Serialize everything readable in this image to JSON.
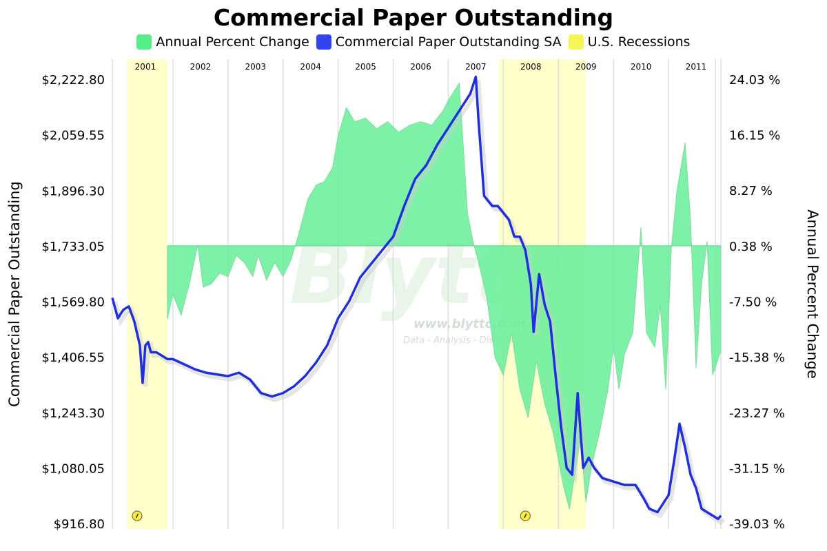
{
  "chart_data": {
    "type": "area",
    "title": "Commercial Paper Outstanding",
    "xlabel": "",
    "ylabel": "Commercial Paper Outstanding",
    "y2label": "Annual Percent Change",
    "xlim": [
      2000.9,
      2011.95
    ],
    "ylim": [
      916.8,
      2222.8
    ],
    "y2lim": [
      -39.03,
      24.03
    ],
    "y_ticks": [
      "$2,222.80",
      "$2,059.55",
      "$1,896.30",
      "$1,733.05",
      "$1,569.80",
      "$1,406.55",
      "$1,243.30",
      "$1,080.05",
      "$916.80"
    ],
    "y2_ticks": [
      "24.03 %",
      "16.15 %",
      "8.27 %",
      "0.38 %",
      "-7.50 %",
      "-15.38 %",
      "-23.27 %",
      "-31.15 %",
      "-39.03 %"
    ],
    "years": [
      "2001",
      "2002",
      "2003",
      "2004",
      "2005",
      "2006",
      "2007",
      "2008",
      "2009",
      "2010",
      "2011"
    ],
    "grid": "vertical-year-lines",
    "legend_position": "top",
    "series": [
      {
        "name": "Annual Percent Change",
        "axis": "right",
        "color": "#66ee99",
        "x": [
          2001.9,
          2002.0,
          2002.15,
          2002.3,
          2002.45,
          2002.55,
          2002.7,
          2002.85,
          2003.0,
          2003.15,
          2003.3,
          2003.45,
          2003.55,
          2003.7,
          2003.85,
          2004.0,
          2004.15,
          2004.3,
          2004.45,
          2004.6,
          2004.75,
          2004.9,
          2005.0,
          2005.15,
          2005.3,
          2005.5,
          2005.7,
          2005.9,
          2006.1,
          2006.3,
          2006.5,
          2006.7,
          2006.9,
          2007.0,
          2007.2,
          2007.35,
          2007.45,
          2007.55,
          2007.7,
          2007.85,
          2008.0,
          2008.15,
          2008.3,
          2008.45,
          2008.6,
          2008.75,
          2008.9,
          2009.0,
          2009.1,
          2009.2,
          2009.3,
          2009.4,
          2009.5,
          2009.6,
          2009.75,
          2009.9,
          2010.0,
          2010.1,
          2010.2,
          2010.35,
          2010.5,
          2010.6,
          2010.75,
          2010.85,
          2010.95,
          2011.05,
          2011.15,
          2011.3,
          2011.4,
          2011.5,
          2011.6,
          2011.7,
          2011.8,
          2011.95
        ],
        "values": [
          -10.0,
          -6.5,
          -9.5,
          -5.0,
          0.5,
          -5.5,
          -5.0,
          -3.5,
          -4.0,
          -1.0,
          -2.0,
          -4.0,
          -1.0,
          -4.5,
          -2.0,
          -4.0,
          -1.5,
          2.5,
          7.0,
          9.0,
          9.5,
          11.5,
          16.0,
          20.0,
          18.0,
          18.5,
          17.0,
          18.0,
          16.5,
          17.5,
          18.0,
          17.5,
          19.5,
          21.0,
          23.5,
          5.0,
          1.0,
          -2.0,
          -7.0,
          -15.5,
          -18.0,
          -12.0,
          -20.0,
          -24.0,
          -16.0,
          -22.0,
          -26.0,
          -30.0,
          -34.0,
          -37.0,
          -32.0,
          -27.0,
          -36.0,
          -31.0,
          -26.0,
          -20.0,
          -14.0,
          -20.0,
          -15.0,
          -12.0,
          3.0,
          -12.0,
          -14.0,
          -8.0,
          -20.0,
          0.0,
          8.0,
          15.0,
          4.0,
          -17.0,
          -5.0,
          1.0,
          -18.0,
          -14.5
        ]
      },
      {
        "name": "Commercial Paper Outstanding SA",
        "axis": "left",
        "color": "#1f2fe0",
        "x": [
          2000.9,
          2001.0,
          2001.1,
          2001.2,
          2001.3,
          2001.35,
          2001.4,
          2001.45,
          2001.5,
          2001.55,
          2001.6,
          2001.7,
          2001.8,
          2001.9,
          2002.0,
          2002.2,
          2002.4,
          2002.6,
          2002.8,
          2003.0,
          2003.2,
          2003.4,
          2003.6,
          2003.8,
          2003.9,
          2004.0,
          2004.2,
          2004.4,
          2004.6,
          2004.8,
          2005.0,
          2005.2,
          2005.4,
          2005.6,
          2005.8,
          2006.0,
          2006.2,
          2006.4,
          2006.6,
          2006.8,
          2007.0,
          2007.2,
          2007.4,
          2007.5,
          2007.55,
          2007.65,
          2007.8,
          2007.9,
          2008.0,
          2008.1,
          2008.2,
          2008.3,
          2008.4,
          2008.5,
          2008.55,
          2008.65,
          2008.75,
          2008.85,
          2008.95,
          2009.05,
          2009.15,
          2009.25,
          2009.35,
          2009.45,
          2009.55,
          2009.65,
          2009.8,
          2010.0,
          2010.2,
          2010.4,
          2010.55,
          2010.65,
          2010.8,
          2011.0,
          2011.1,
          2011.2,
          2011.3,
          2011.4,
          2011.5,
          2011.6,
          2011.7,
          2011.8,
          2011.9,
          2011.95
        ],
        "values": [
          1580,
          1520,
          1545,
          1555,
          1510,
          1475,
          1440,
          1330,
          1440,
          1450,
          1420,
          1420,
          1410,
          1400,
          1400,
          1385,
          1370,
          1360,
          1355,
          1350,
          1360,
          1340,
          1300,
          1290,
          1295,
          1300,
          1320,
          1350,
          1390,
          1440,
          1520,
          1570,
          1640,
          1680,
          1720,
          1760,
          1850,
          1930,
          1970,
          2030,
          2080,
          2130,
          2180,
          2230,
          2100,
          1880,
          1850,
          1850,
          1830,
          1810,
          1760,
          1760,
          1720,
          1620,
          1480,
          1650,
          1560,
          1510,
          1350,
          1200,
          1080,
          1060,
          1300,
          1080,
          1110,
          1080,
          1050,
          1040,
          1030,
          1030,
          990,
          960,
          950,
          1000,
          1100,
          1210,
          1140,
          1060,
          1020,
          960,
          950,
          940,
          930,
          940
        ]
      },
      {
        "name": "U.S. Recessions",
        "axis": "none",
        "color": "#ffff66",
        "ranges": [
          [
            2001.17,
            2001.9
          ],
          [
            2007.92,
            2009.5
          ]
        ]
      }
    ]
  }
}
